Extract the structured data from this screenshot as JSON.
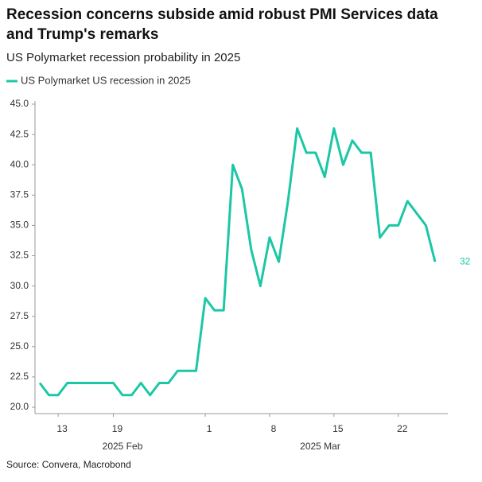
{
  "chart_data": {
    "type": "line",
    "title": "Recession concerns subside amid robust PMI Services data and Trump's remarks",
    "subtitle": "US Polymarket recession probability in 2025",
    "source": "Source: Convera, Macrobond",
    "x": [
      "2025-02-11",
      "2025-02-12",
      "2025-02-13",
      "2025-02-14",
      "2025-02-15",
      "2025-02-16",
      "2025-02-17",
      "2025-02-18",
      "2025-02-19",
      "2025-02-20",
      "2025-02-21",
      "2025-02-22",
      "2025-02-23",
      "2025-02-24",
      "2025-02-25",
      "2025-02-26",
      "2025-02-27",
      "2025-02-28",
      "2025-03-01",
      "2025-03-02",
      "2025-03-03",
      "2025-03-04",
      "2025-03-05",
      "2025-03-06",
      "2025-03-07",
      "2025-03-08",
      "2025-03-09",
      "2025-03-10",
      "2025-03-11",
      "2025-03-12",
      "2025-03-13",
      "2025-03-14",
      "2025-03-15",
      "2025-03-16",
      "2025-03-17",
      "2025-03-18",
      "2025-03-19",
      "2025-03-20",
      "2025-03-21",
      "2025-03-22",
      "2025-03-23",
      "2025-03-24",
      "2025-03-25",
      "2025-03-26"
    ],
    "series": [
      {
        "name": "US Polymarket US recession in 2025",
        "color": "#1cc7a6",
        "values": [
          22,
          21,
          21,
          22,
          22,
          22,
          22,
          22,
          22,
          21,
          21,
          22,
          21,
          22,
          22,
          23,
          23,
          23,
          29,
          28,
          28,
          40,
          38,
          33,
          30,
          34,
          32,
          37,
          43,
          41,
          41,
          39,
          43,
          40,
          42,
          41,
          41,
          34,
          35,
          35,
          37,
          36,
          35,
          32
        ],
        "end_label": "32"
      }
    ],
    "xlim": [
      "2025-02-11",
      "2025-03-26"
    ],
    "xticks": [
      {
        "value": "2025-02-13",
        "label": "13"
      },
      {
        "value": "2025-02-19",
        "label": "19"
      },
      {
        "value": "2025-03-01",
        "label": "1"
      },
      {
        "value": "2025-03-08",
        "label": "8"
      },
      {
        "value": "2025-03-15",
        "label": "15"
      },
      {
        "value": "2025-03-22",
        "label": "22"
      }
    ],
    "x_groups": [
      {
        "value": "2025-02",
        "label": "2025 Feb"
      },
      {
        "value": "2025-03",
        "label": "2025 Mar"
      }
    ],
    "ylim": [
      20,
      45
    ],
    "yticks": [
      {
        "value": 20,
        "label": "20.0"
      },
      22.5,
      {
        "value": 25,
        "label": "25.0"
      },
      27.5,
      {
        "value": 30,
        "label": "30.0"
      },
      32.5,
      {
        "value": 35,
        "label": "35.0"
      },
      37.5,
      {
        "value": 40,
        "label": "40.0"
      },
      42.5,
      {
        "value": 45,
        "label": "45.0"
      }
    ],
    "grid": false
  }
}
